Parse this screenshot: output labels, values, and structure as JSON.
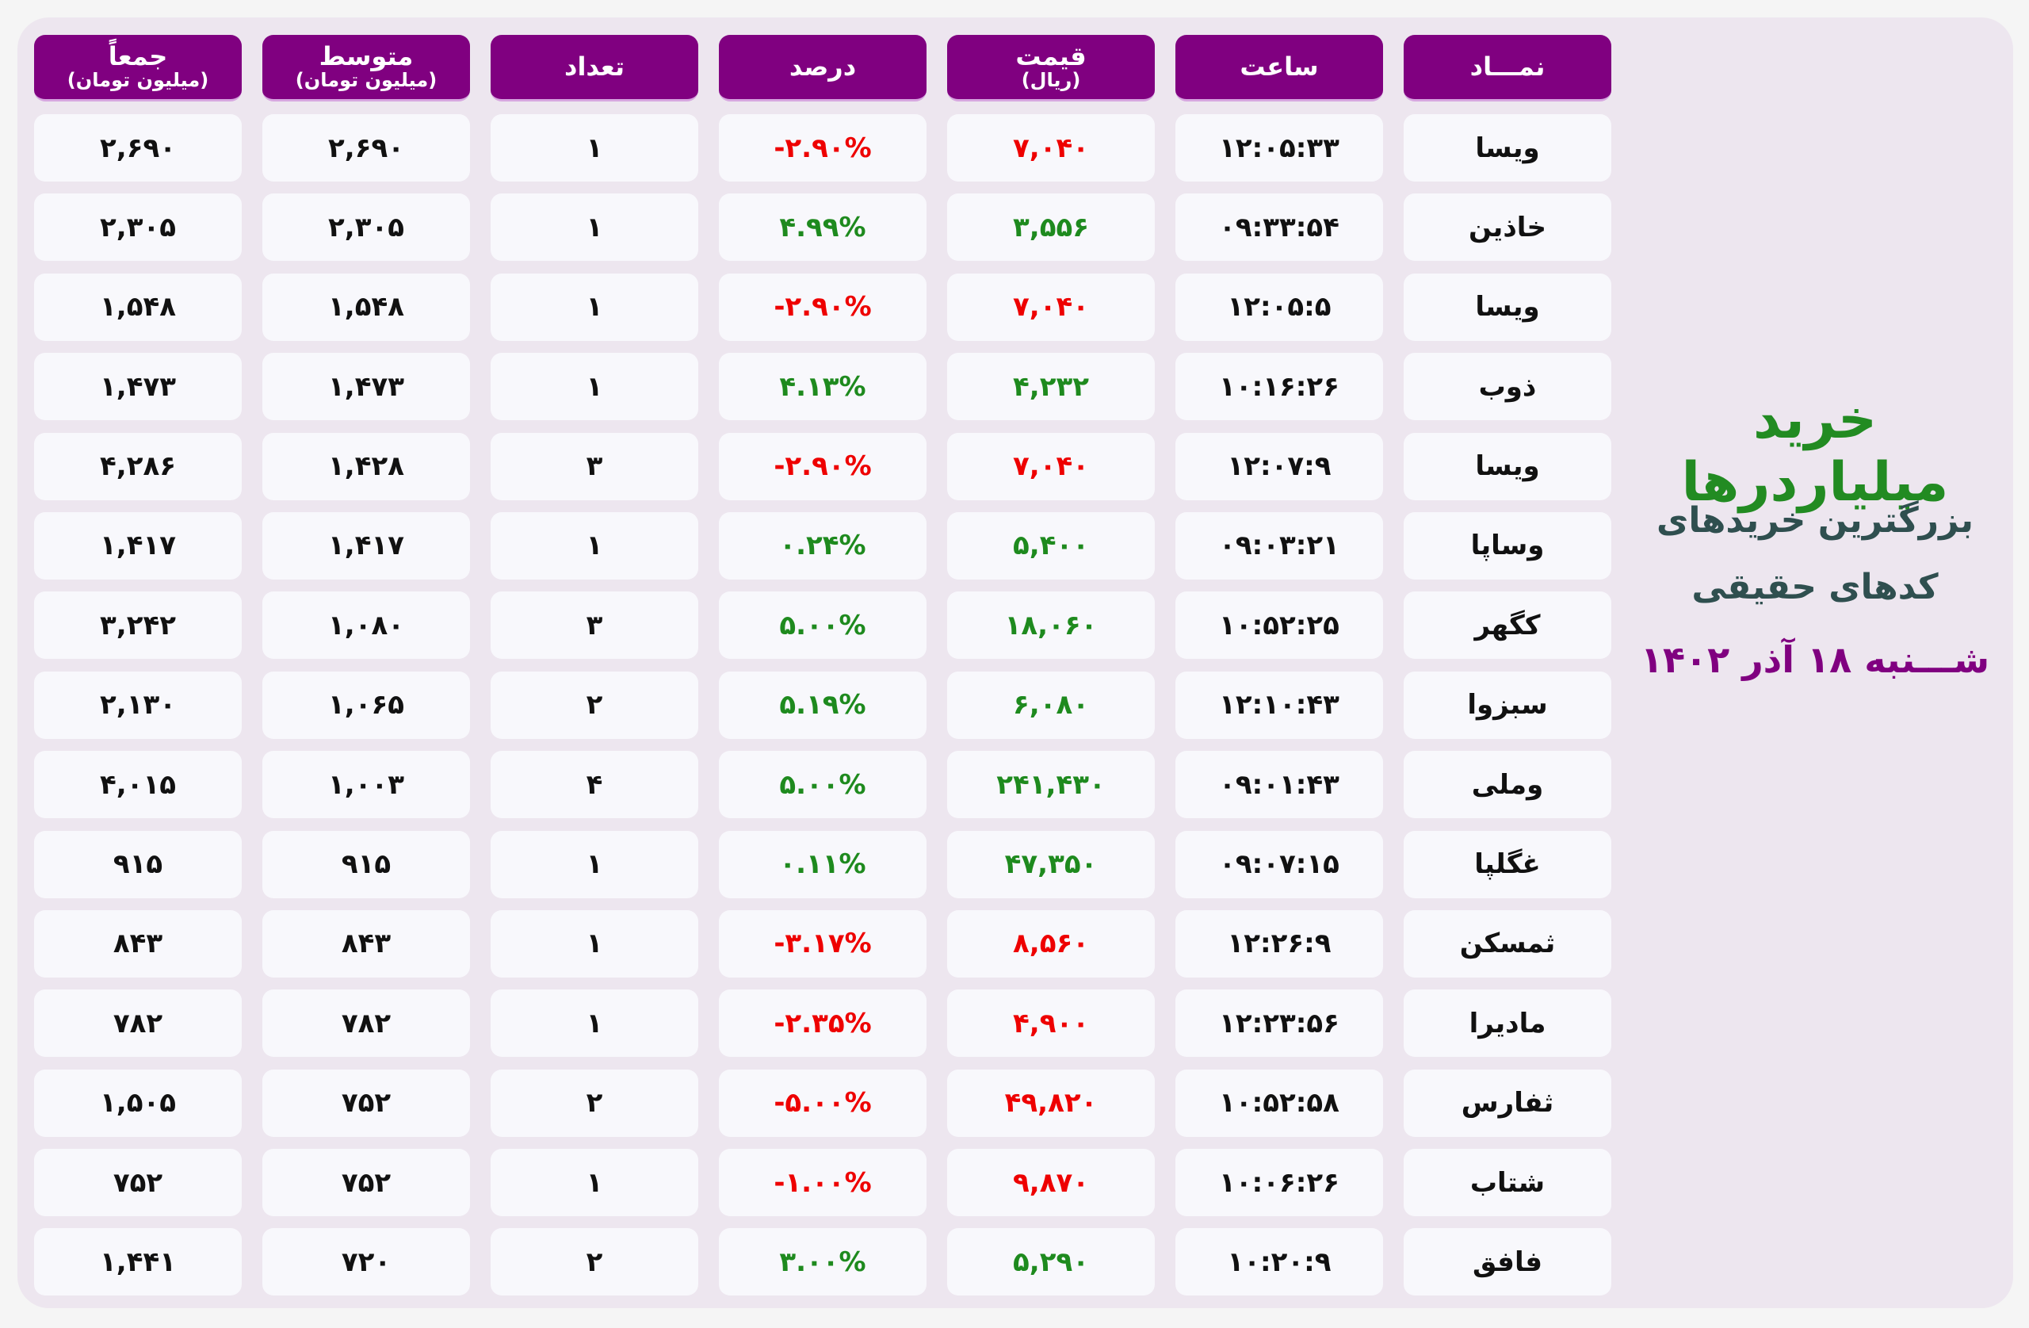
{
  "side": {
    "title": "خرید میلیاردرها",
    "subtitle_line1": "بزرگترین خریدهای",
    "subtitle_line2": "کدهای حقیقی",
    "date": "شـــنبه ۱۸ آذر ۱۴۰۲"
  },
  "colors": {
    "header": "#800080",
    "positive": "#1e8a1e",
    "negative": "#ee0000",
    "title": "#228B22",
    "subtitle": "#2F4F4F"
  },
  "headers": [
    {
      "label": "نمـــاد",
      "sub": ""
    },
    {
      "label": "ساعت",
      "sub": ""
    },
    {
      "label": "قیمت",
      "sub": "(ریال)"
    },
    {
      "label": "درصد",
      "sub": ""
    },
    {
      "label": "تعداد",
      "sub": ""
    },
    {
      "label": "متوسط",
      "sub": "(میلیون تومان)"
    },
    {
      "label": "جمعاً",
      "sub": "(میلیون تومان)"
    }
  ],
  "rows": [
    {
      "symbol": "ویسا",
      "time": "۱۲:۰۵:۳۳",
      "price": "۷,۰۴۰",
      "percent": "-۲.۹۰%",
      "count": "۱",
      "avg": "۲,۶۹۰",
      "total": "۲,۶۹۰",
      "dir": "neg"
    },
    {
      "symbol": "خاذین",
      "time": "۰۹:۳۳:۵۴",
      "price": "۳,۵۵۶",
      "percent": "۴.۹۹%",
      "count": "۱",
      "avg": "۲,۳۰۵",
      "total": "۲,۳۰۵",
      "dir": "pos"
    },
    {
      "symbol": "ویسا",
      "time": "۱۲:۰۵:۵",
      "price": "۷,۰۴۰",
      "percent": "-۲.۹۰%",
      "count": "۱",
      "avg": "۱,۵۴۸",
      "total": "۱,۵۴۸",
      "dir": "neg"
    },
    {
      "symbol": "ذوب",
      "time": "۱۰:۱۶:۲۶",
      "price": "۴,۲۳۲",
      "percent": "۴.۱۳%",
      "count": "۱",
      "avg": "۱,۴۷۳",
      "total": "۱,۴۷۳",
      "dir": "pos"
    },
    {
      "symbol": "ویسا",
      "time": "۱۲:۰۷:۹",
      "price": "۷,۰۴۰",
      "percent": "-۲.۹۰%",
      "count": "۳",
      "avg": "۱,۴۲۸",
      "total": "۴,۲۸۶",
      "dir": "neg"
    },
    {
      "symbol": "وساپا",
      "time": "۰۹:۰۳:۲۱",
      "price": "۵,۴۰۰",
      "percent": "۰.۲۴%",
      "count": "۱",
      "avg": "۱,۴۱۷",
      "total": "۱,۴۱۷",
      "dir": "pos"
    },
    {
      "symbol": "کگهر",
      "time": "۱۰:۵۲:۲۵",
      "price": "۱۸,۰۶۰",
      "percent": "۵.۰۰%",
      "count": "۳",
      "avg": "۱,۰۸۰",
      "total": "۳,۲۴۲",
      "dir": "pos"
    },
    {
      "symbol": "سبزوا",
      "time": "۱۲:۱۰:۴۳",
      "price": "۶,۰۸۰",
      "percent": "۵.۱۹%",
      "count": "۲",
      "avg": "۱,۰۶۵",
      "total": "۲,۱۳۰",
      "dir": "pos"
    },
    {
      "symbol": "وملی",
      "time": "۰۹:۰۱:۴۳",
      "price": "۲۴۱,۴۳۰",
      "percent": "۵.۰۰%",
      "count": "۴",
      "avg": "۱,۰۰۳",
      "total": "۴,۰۱۵",
      "dir": "pos"
    },
    {
      "symbol": "غگلپا",
      "time": "۰۹:۰۷:۱۵",
      "price": "۴۷,۳۵۰",
      "percent": "۰.۱۱%",
      "count": "۱",
      "avg": "۹۱۵",
      "total": "۹۱۵",
      "dir": "pos"
    },
    {
      "symbol": "ثمسکن",
      "time": "۱۲:۲۶:۹",
      "price": "۸,۵۶۰",
      "percent": "-۳.۱۷%",
      "count": "۱",
      "avg": "۸۴۳",
      "total": "۸۴۳",
      "dir": "neg"
    },
    {
      "symbol": "مادیرا",
      "time": "۱۲:۲۳:۵۶",
      "price": "۴,۹۰۰",
      "percent": "-۲.۳۵%",
      "count": "۱",
      "avg": "۷۸۲",
      "total": "۷۸۲",
      "dir": "neg"
    },
    {
      "symbol": "ثفارس",
      "time": "۱۰:۵۲:۵۸",
      "price": "۴۹,۸۲۰",
      "percent": "-۵.۰۰%",
      "count": "۲",
      "avg": "۷۵۲",
      "total": "۱,۵۰۵",
      "dir": "neg"
    },
    {
      "symbol": "شتاب",
      "time": "۱۰:۰۶:۲۶",
      "price": "۹,۸۷۰",
      "percent": "-۱.۰۰%",
      "count": "۱",
      "avg": "۷۵۲",
      "total": "۷۵۲",
      "dir": "neg"
    },
    {
      "symbol": "فافق",
      "time": "۱۰:۲۰:۹",
      "price": "۵,۲۹۰",
      "percent": "۳.۰۰%",
      "count": "۲",
      "avg": "۷۲۰",
      "total": "۱,۴۴۱",
      "dir": "pos"
    }
  ]
}
